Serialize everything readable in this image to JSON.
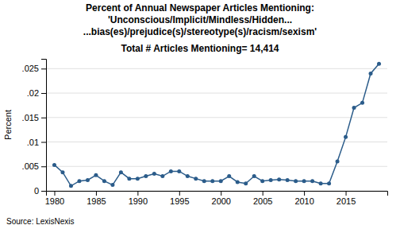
{
  "chart_data": {
    "type": "line",
    "title": [
      "Percent of Annual Newspaper Articles Mentioning:",
      "'Unconscious/Implicit/Mindless/Hidden...",
      "...bias(es)/prejudice(s)/stereotype(s)/racism/sexism'"
    ],
    "subtitle": "Total # Articles Mentioning= 14,414",
    "ylabel": "Percent",
    "annotations": [
      "Source: LexisNexis"
    ],
    "color": "#2b5c8a",
    "marker": "circle",
    "grid": true,
    "x": [
      1980,
      1981,
      1982,
      1983,
      1984,
      1985,
      1986,
      1987,
      1988,
      1989,
      1990,
      1991,
      1992,
      1993,
      1994,
      1995,
      1996,
      1997,
      1998,
      1999,
      2000,
      2001,
      2002,
      2003,
      2004,
      2005,
      2006,
      2007,
      2008,
      2009,
      2010,
      2011,
      2012,
      2013,
      2014,
      2015,
      2016,
      2017,
      2018,
      2019
    ],
    "values": [
      0.0053,
      0.0038,
      0.001,
      0.002,
      0.0022,
      0.0032,
      0.002,
      0.0012,
      0.0038,
      0.0025,
      0.0025,
      0.003,
      0.0035,
      0.003,
      0.004,
      0.004,
      0.003,
      0.0025,
      0.002,
      0.002,
      0.002,
      0.003,
      0.0018,
      0.0015,
      0.003,
      0.002,
      0.0022,
      0.0023,
      0.0022,
      0.002,
      0.002,
      0.002,
      0.0015,
      0.0015,
      0.006,
      0.011,
      0.017,
      0.018,
      0.024,
      0.026
    ],
    "xlim": [
      1979,
      2020
    ],
    "xticks": [
      1980,
      1985,
      1990,
      1995,
      2000,
      2005,
      2010,
      2015
    ],
    "ylim": [
      0,
      0.027
    ],
    "yticks": [
      0,
      {
        "value": 0.005,
        "label": ".005"
      },
      {
        "value": 0.01,
        "label": ".01"
      },
      {
        "value": 0.015,
        "label": ".015"
      },
      {
        "value": 0.02,
        "label": ".02"
      },
      {
        "value": 0.025,
        "label": ".025"
      }
    ]
  }
}
